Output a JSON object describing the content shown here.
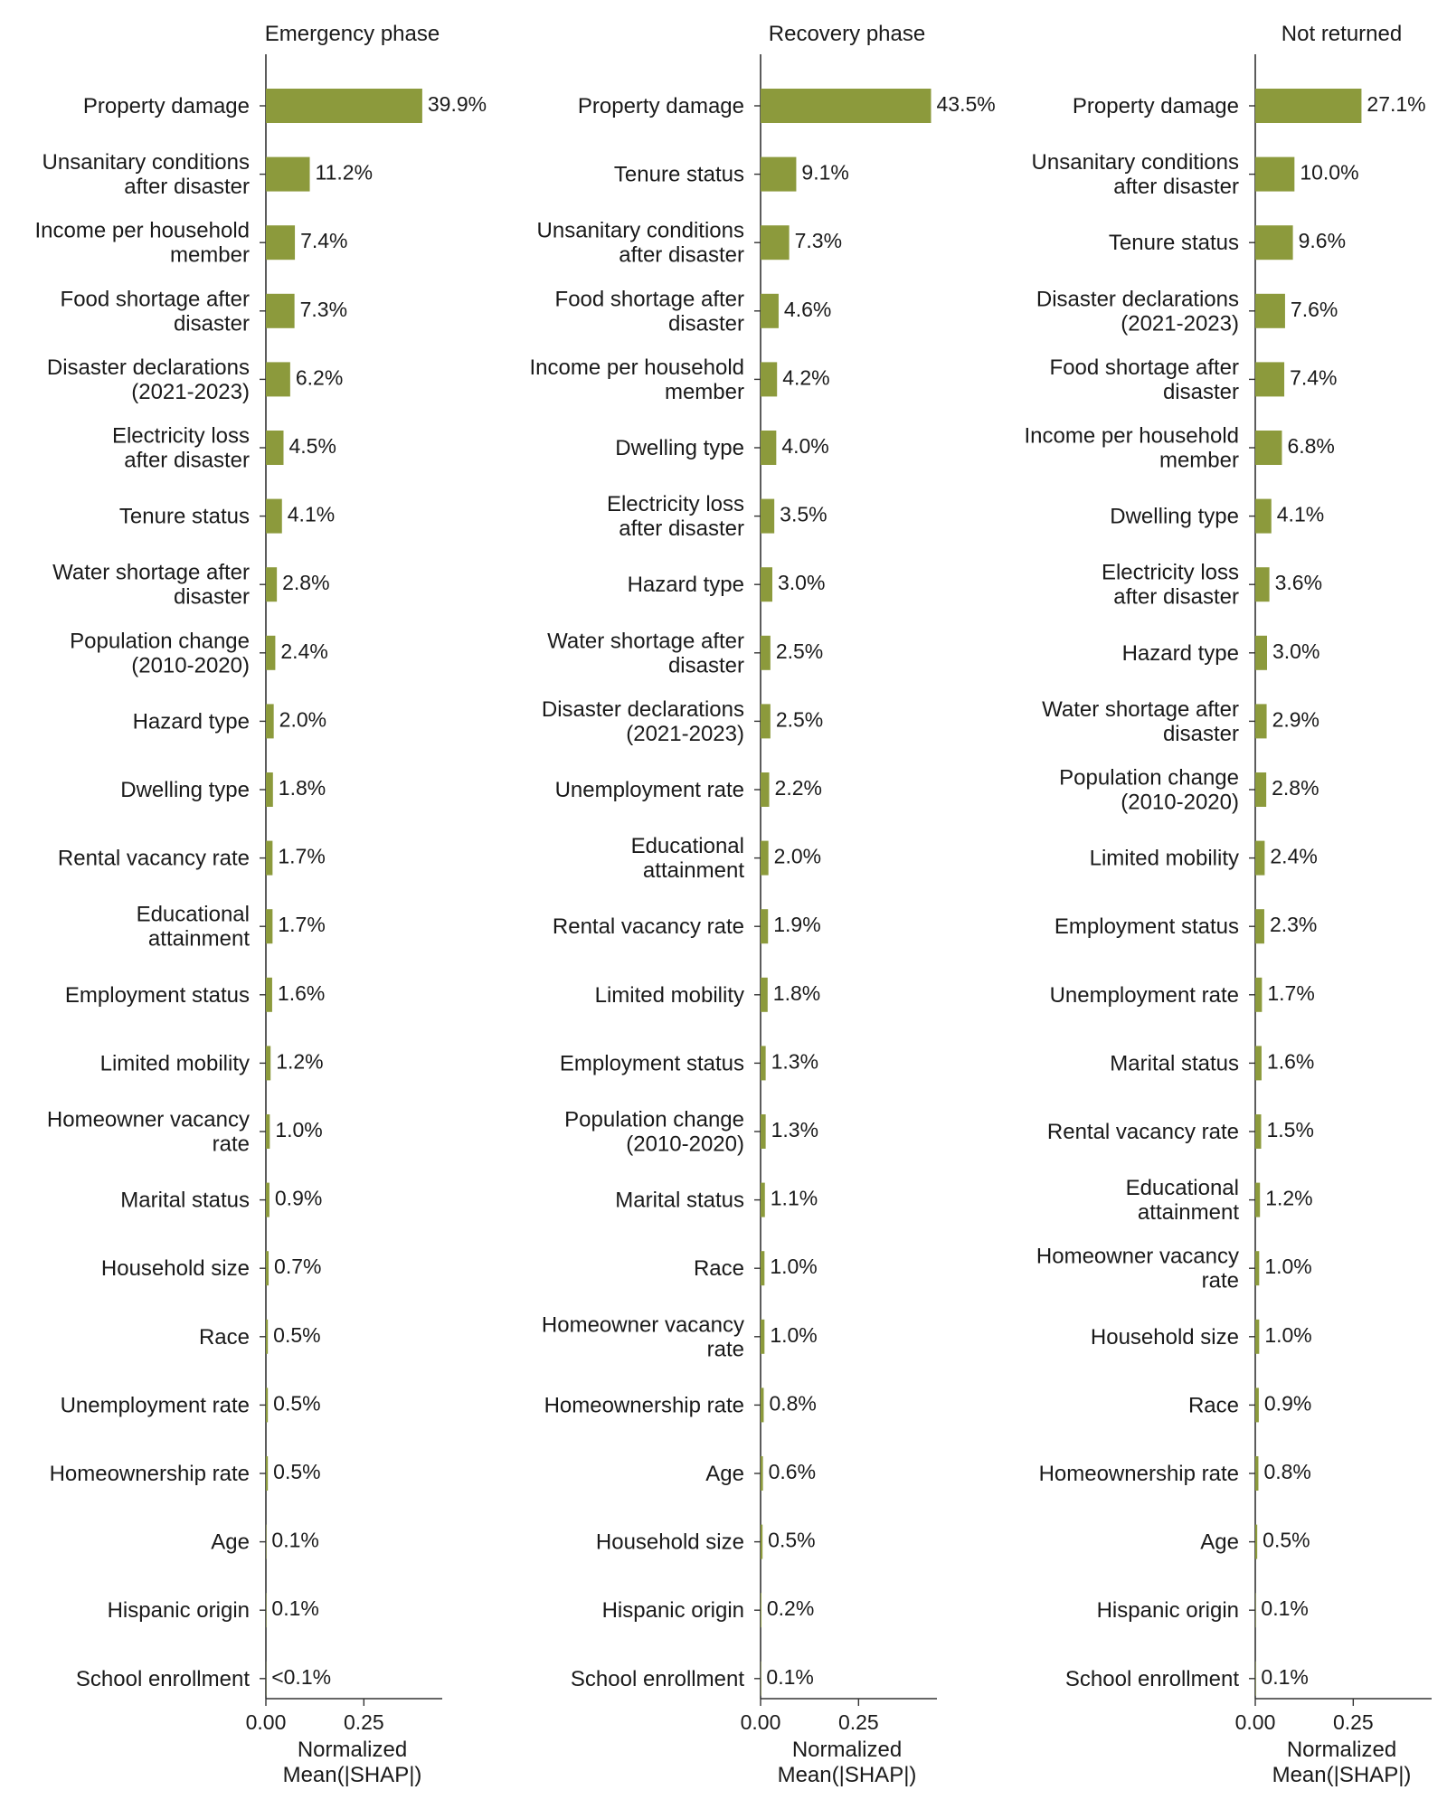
{
  "colors": {
    "bar": "#8c9a3c",
    "axis": "#333333",
    "text": "#1a1a1a"
  },
  "chart_data": [
    {
      "type": "bar",
      "orientation": "horizontal",
      "title": "Emergency phase",
      "xlabel": [
        "Normalized",
        "Mean(|SHAP|)"
      ],
      "xlim": [
        0,
        0.45
      ],
      "xticks": [
        0.0,
        0.25
      ],
      "xtick_labels": [
        "0.00",
        "0.25"
      ],
      "grid": false,
      "categories": [
        [
          "Property damage"
        ],
        [
          "Unsanitary conditions",
          "after disaster"
        ],
        [
          "Income per household",
          "member"
        ],
        [
          "Food shortage after",
          "disaster"
        ],
        [
          "Disaster declarations",
          "(2021-2023)"
        ],
        [
          "Electricity loss",
          "after disaster"
        ],
        [
          "Tenure status"
        ],
        [
          "Water shortage after",
          "disaster"
        ],
        [
          "Population change",
          "(2010-2020)"
        ],
        [
          "Hazard type"
        ],
        [
          "Dwelling type"
        ],
        [
          "Rental vacancy rate"
        ],
        [
          "Educational",
          "attainment"
        ],
        [
          "Employment status"
        ],
        [
          "Limited mobility"
        ],
        [
          "Homeowner vacancy",
          "rate"
        ],
        [
          "Marital status"
        ],
        [
          "Household size"
        ],
        [
          "Race"
        ],
        [
          "Unemployment rate"
        ],
        [
          "Homeownership rate"
        ],
        [
          "Age"
        ],
        [
          "Hispanic origin"
        ],
        [
          "School enrollment"
        ]
      ],
      "values": [
        0.399,
        0.112,
        0.074,
        0.073,
        0.062,
        0.045,
        0.041,
        0.028,
        0.024,
        0.02,
        0.018,
        0.017,
        0.017,
        0.016,
        0.012,
        0.01,
        0.009,
        0.007,
        0.005,
        0.005,
        0.005,
        0.001,
        0.001,
        0.0005
      ],
      "value_labels": [
        "39.9%",
        "11.2%",
        "7.4%",
        "7.3%",
        "6.2%",
        "4.5%",
        "4.1%",
        "2.8%",
        "2.4%",
        "2.0%",
        "1.8%",
        "1.7%",
        "1.7%",
        "1.6%",
        "1.2%",
        "1.0%",
        "0.9%",
        "0.7%",
        "0.5%",
        "0.5%",
        "0.5%",
        "0.1%",
        "0.1%",
        "<0.1%"
      ]
    },
    {
      "type": "bar",
      "orientation": "horizontal",
      "title": "Recovery phase",
      "xlabel": [
        "Normalized",
        "Mean(|SHAP|)"
      ],
      "xlim": [
        0,
        0.45
      ],
      "xticks": [
        0.0,
        0.25
      ],
      "xtick_labels": [
        "0.00",
        "0.25"
      ],
      "grid": false,
      "categories": [
        [
          "Property damage"
        ],
        [
          "Tenure status"
        ],
        [
          "Unsanitary conditions",
          "after disaster"
        ],
        [
          "Food shortage after",
          "disaster"
        ],
        [
          "Income per household",
          "member"
        ],
        [
          "Dwelling type"
        ],
        [
          "Electricity loss",
          "after disaster"
        ],
        [
          "Hazard type"
        ],
        [
          "Water shortage after",
          "disaster"
        ],
        [
          "Disaster declarations",
          "(2021-2023)"
        ],
        [
          "Unemployment rate"
        ],
        [
          "Educational",
          "attainment"
        ],
        [
          "Rental vacancy rate"
        ],
        [
          "Limited mobility"
        ],
        [
          "Employment status"
        ],
        [
          "Population change",
          "(2010-2020)"
        ],
        [
          "Marital status"
        ],
        [
          "Race"
        ],
        [
          "Homeowner vacancy",
          "rate"
        ],
        [
          "Homeownership rate"
        ],
        [
          "Age"
        ],
        [
          "Household size"
        ],
        [
          "Hispanic origin"
        ],
        [
          "School enrollment"
        ]
      ],
      "values": [
        0.435,
        0.091,
        0.073,
        0.046,
        0.042,
        0.04,
        0.035,
        0.03,
        0.025,
        0.025,
        0.022,
        0.02,
        0.019,
        0.018,
        0.013,
        0.013,
        0.011,
        0.01,
        0.01,
        0.008,
        0.006,
        0.005,
        0.002,
        0.001
      ],
      "value_labels": [
        "43.5%",
        "9.1%",
        "7.3%",
        "4.6%",
        "4.2%",
        "4.0%",
        "3.5%",
        "3.0%",
        "2.5%",
        "2.5%",
        "2.2%",
        "2.0%",
        "1.9%",
        "1.8%",
        "1.3%",
        "1.3%",
        "1.1%",
        "1.0%",
        "1.0%",
        "0.8%",
        "0.6%",
        "0.5%",
        "0.2%",
        "0.1%"
      ]
    },
    {
      "type": "bar",
      "orientation": "horizontal",
      "title": "Not returned",
      "xlabel": [
        "Normalized",
        "Mean(|SHAP|)"
      ],
      "xlim": [
        0,
        0.45
      ],
      "xticks": [
        0.0,
        0.25
      ],
      "xtick_labels": [
        "0.00",
        "0.25"
      ],
      "grid": false,
      "categories": [
        [
          "Property damage"
        ],
        [
          "Unsanitary conditions",
          "after disaster"
        ],
        [
          "Tenure status"
        ],
        [
          "Disaster declarations",
          "(2021-2023)"
        ],
        [
          "Food shortage after",
          "disaster"
        ],
        [
          "Income per household",
          "member"
        ],
        [
          "Dwelling type"
        ],
        [
          "Electricity loss",
          "after disaster"
        ],
        [
          "Hazard type"
        ],
        [
          "Water shortage after",
          "disaster"
        ],
        [
          "Population change",
          "(2010-2020)"
        ],
        [
          "Limited mobility"
        ],
        [
          "Employment status"
        ],
        [
          "Unemployment rate"
        ],
        [
          "Marital status"
        ],
        [
          "Rental vacancy rate"
        ],
        [
          "Educational",
          "attainment"
        ],
        [
          "Homeowner vacancy",
          "rate"
        ],
        [
          "Household size"
        ],
        [
          "Race"
        ],
        [
          "Homeownership rate"
        ],
        [
          "Age"
        ],
        [
          "Hispanic origin"
        ],
        [
          "School enrollment"
        ]
      ],
      "values": [
        0.271,
        0.1,
        0.096,
        0.076,
        0.074,
        0.068,
        0.041,
        0.036,
        0.03,
        0.029,
        0.028,
        0.024,
        0.023,
        0.017,
        0.016,
        0.015,
        0.012,
        0.01,
        0.01,
        0.009,
        0.008,
        0.005,
        0.001,
        0.001
      ],
      "value_labels": [
        "27.1%",
        "10.0%",
        "9.6%",
        "7.6%",
        "7.4%",
        "6.8%",
        "4.1%",
        "3.6%",
        "3.0%",
        "2.9%",
        "2.8%",
        "2.4%",
        "2.3%",
        "1.7%",
        "1.6%",
        "1.5%",
        "1.2%",
        "1.0%",
        "1.0%",
        "0.9%",
        "0.8%",
        "0.5%",
        "0.1%",
        "0.1%"
      ]
    }
  ]
}
